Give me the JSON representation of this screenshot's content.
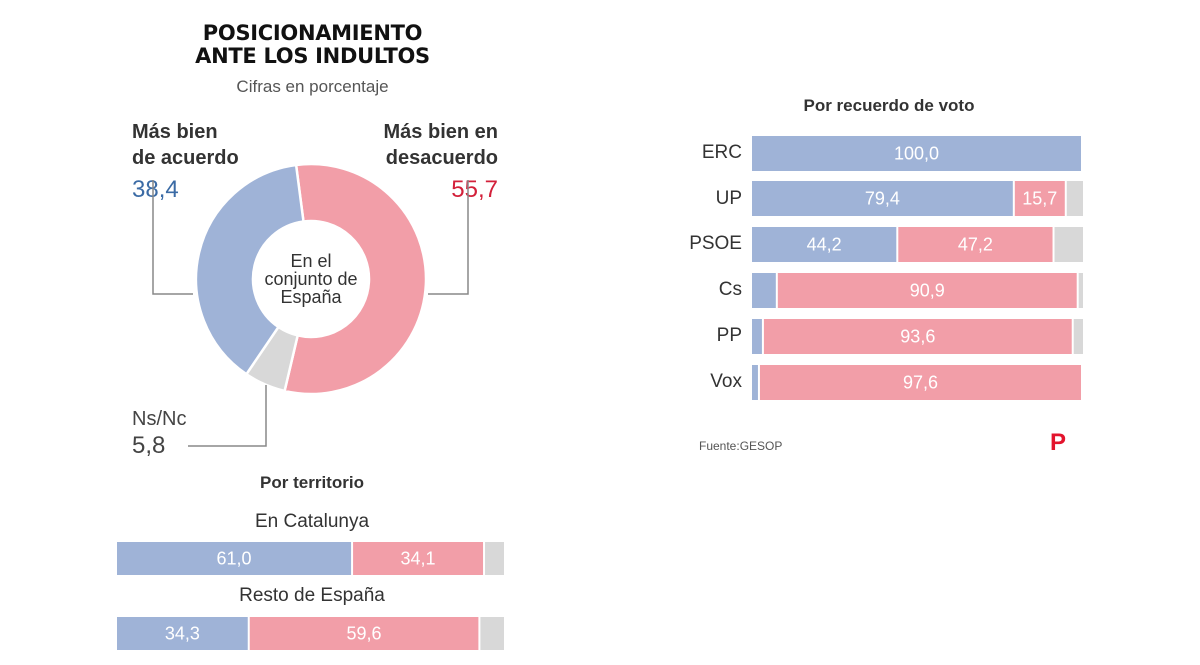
{
  "header": {
    "title_line1": "POSICIONAMIENTO",
    "title_line2": "ANTE LOS INDULTOS",
    "subtitle": "Cifras en porcentaje"
  },
  "donut": {
    "agree_label_line1": "Más bien",
    "agree_label_line2": "de acuerdo",
    "agree_value": "38,4",
    "disagree_label_line1": "Más bien en",
    "disagree_label_line2": "desacuerdo",
    "disagree_value": "55,7",
    "nsnc_label": "Ns/Nc",
    "nsnc_value": "5,8",
    "center_line1": "En el",
    "center_line2": "conjunto de",
    "center_line3": "España"
  },
  "territory": {
    "title": "Por territorio",
    "rows": [
      {
        "label": "En Catalunya"
      },
      {
        "label": "Resto de España"
      }
    ]
  },
  "vote": {
    "title": "Por recuerdo de voto",
    "rows": [
      {
        "label": "ERC"
      },
      {
        "label": "UP"
      },
      {
        "label": "PSOE"
      },
      {
        "label": "Cs"
      },
      {
        "label": "PP"
      },
      {
        "label": "Vox"
      }
    ]
  },
  "source": "Fuente:GESOP",
  "logo_letter": "P",
  "colors": {
    "agree": "#9fb3d7",
    "disagree": "#f29ea8",
    "nsnc": "#d8d8d8",
    "agree_text": "#3b6ba5",
    "disagree_text": "#d3203a",
    "logo": "#e3142d"
  },
  "chart_data": [
    {
      "type": "pie",
      "title": "En el conjunto de España",
      "categories": [
        "Más bien de acuerdo",
        "Más bien en desacuerdo",
        "Ns/Nc"
      ],
      "values": [
        38.4,
        55.7,
        5.8
      ]
    },
    {
      "type": "bar",
      "title": "Por territorio",
      "categories": [
        "En Catalunya",
        "Resto de España"
      ],
      "series": [
        {
          "name": "Más bien de acuerdo",
          "values": [
            61.0,
            34.3
          ],
          "labels": [
            "61,0",
            "34,3"
          ]
        },
        {
          "name": "Más bien en desacuerdo",
          "values": [
            34.1,
            59.6
          ],
          "labels": [
            "34,1",
            "59,6"
          ]
        },
        {
          "name": "Ns/Nc",
          "values": [
            4.9,
            6.1
          ],
          "labels": [
            "",
            ""
          ]
        }
      ]
    },
    {
      "type": "bar",
      "title": "Por recuerdo de voto",
      "categories": [
        "ERC",
        "UP",
        "PSOE",
        "Cs",
        "PP",
        "Vox"
      ],
      "series": [
        {
          "name": "Más bien de acuerdo",
          "values": [
            100.0,
            79.4,
            44.2,
            7.8,
            3.6,
            2.4
          ],
          "labels": [
            "100,0",
            "79,4",
            "44,2",
            "7,8",
            "3,6",
            "2,4"
          ]
        },
        {
          "name": "Más bien en desacuerdo",
          "values": [
            0,
            15.7,
            47.2,
            90.9,
            93.6,
            97.6
          ],
          "labels": [
            "",
            "15,7",
            "47,2",
            "90,9",
            "93,6",
            "97,6"
          ]
        },
        {
          "name": "Ns/Nc",
          "values": [
            0,
            4.9,
            8.6,
            1.3,
            2.8,
            0
          ],
          "labels": [
            "",
            "",
            "",
            "",
            "",
            ""
          ]
        }
      ]
    }
  ]
}
